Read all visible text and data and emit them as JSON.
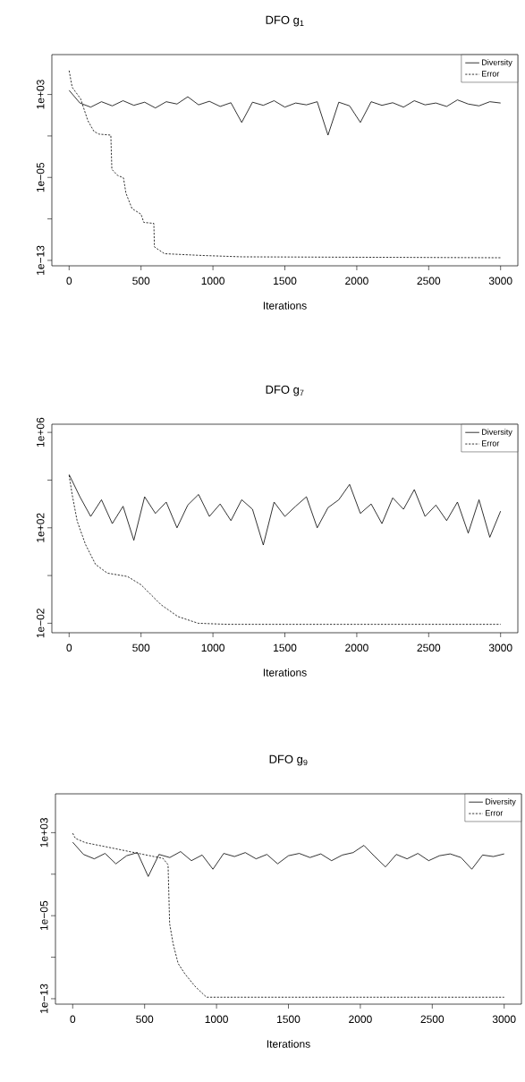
{
  "chart_data": [
    {
      "type": "line",
      "title": "DFO g$_{1}$",
      "xlabel": "Iterations",
      "log": "y",
      "legend": "top right",
      "xlim": [
        -120,
        3120
      ],
      "ylim": [
        3e-14,
        7000000.0
      ],
      "xticks": [
        0,
        500,
        1000,
        1500,
        2000,
        2500,
        3000
      ],
      "yticks": [
        {
          "value": 1000,
          "label": "1e+03"
        },
        {
          "value": 0.1,
          "label": null
        },
        {
          "value": 1e-05,
          "label": "1e−05"
        },
        {
          "value": 1e-09,
          "label": null
        },
        {
          "value": 1e-13,
          "label": "1e−13"
        }
      ],
      "series": [
        {
          "name": "Diversity",
          "color": "#000000",
          "line_style": "solid",
          "x": [
            0,
            75,
            150,
            225,
            300,
            375,
            450,
            525,
            600,
            675,
            750,
            825,
            900,
            975,
            1050,
            1125,
            1200,
            1275,
            1350,
            1425,
            1500,
            1575,
            1650,
            1725,
            1800,
            1875,
            1950,
            2025,
            2100,
            2175,
            2250,
            2325,
            2400,
            2475,
            2550,
            2625,
            2700,
            2775,
            2850,
            2925,
            3000
          ],
          "values": [
            2500,
            150,
            60,
            200,
            80,
            250,
            90,
            180,
            50,
            200,
            120,
            600,
            100,
            220,
            70,
            160,
            2,
            180,
            90,
            250,
            60,
            150,
            100,
            200,
            0.12,
            180,
            80,
            2,
            200,
            90,
            160,
            60,
            250,
            100,
            150,
            70,
            300,
            120,
            80,
            200,
            150
          ]
        },
        {
          "name": "Error",
          "color": "#000000",
          "line_style": "dashed",
          "x": [
            0,
            21,
            80,
            130,
            173,
            208,
            290,
            297,
            336,
            378,
            395,
            437,
            500,
            519,
            589,
            593,
            663,
            920,
            1200,
            3000
          ],
          "values": [
            200000,
            5000,
            380,
            3,
            0.27,
            0.15,
            0.12,
            6e-05,
            1.6e-05,
            9e-06,
            3e-07,
            1e-08,
            2.8e-09,
            4.6e-10,
            3.7e-10,
            2e-12,
            4.4e-13,
            3e-13,
            2.2e-13,
            1.8e-13
          ]
        }
      ]
    },
    {
      "type": "line",
      "title": "DFO g$_{7}$",
      "xlabel": "Iterations",
      "log": "y",
      "legend": "top right",
      "xlim": [
        -120,
        3120
      ],
      "ylim": [
        0.004,
        2200000.0
      ],
      "xticks": [
        0,
        500,
        1000,
        1500,
        2000,
        2500,
        3000
      ],
      "yticks": [
        {
          "value": 1000000,
          "label": "1e+06"
        },
        {
          "value": 10000,
          "label": null
        },
        {
          "value": 100,
          "label": "1e+02"
        },
        {
          "value": 1,
          "label": null
        },
        {
          "value": 0.01,
          "label": "1e−02"
        }
      ],
      "series": [
        {
          "name": "Diversity",
          "color": "#000000",
          "line_style": "solid",
          "x": [
            0,
            75,
            150,
            225,
            300,
            375,
            450,
            525,
            600,
            675,
            750,
            825,
            900,
            975,
            1050,
            1125,
            1200,
            1275,
            1350,
            1425,
            1500,
            1575,
            1650,
            1725,
            1800,
            1875,
            1950,
            2025,
            2100,
            2175,
            2250,
            2325,
            2400,
            2475,
            2550,
            2625,
            2700,
            2775,
            2850,
            2925,
            3000
          ],
          "values": [
            17000,
            2000,
            300,
            1500,
            150,
            800,
            30,
            2000,
            400,
            1200,
            100,
            900,
            2500,
            300,
            1000,
            200,
            1500,
            600,
            19,
            1200,
            300,
            800,
            2000,
            100,
            700,
            1500,
            6600,
            400,
            1000,
            150,
            1800,
            600,
            4000,
            300,
            900,
            200,
            1200,
            60,
            1500,
            40,
            500
          ]
        },
        {
          "name": "Error",
          "color": "#000000",
          "line_style": "dashed",
          "x": [
            0,
            21,
            56,
            114,
            184,
            266,
            406,
            500,
            640,
            757,
            897,
            1100,
            3000
          ],
          "values": [
            16000,
            2500,
            190,
            20,
            2.9,
            1.26,
            0.91,
            0.41,
            0.059,
            0.019,
            0.01,
            0.009,
            0.009
          ]
        }
      ]
    },
    {
      "type": "line",
      "title": "DFO g$_{9}$",
      "xlabel": "Iterations",
      "log": "y",
      "legend": "top right",
      "xlim": [
        -120,
        3120
      ],
      "ylim": [
        3e-14,
        5500000.0
      ],
      "xticks": [
        0,
        500,
        1000,
        1500,
        2000,
        2500,
        3000
      ],
      "yticks": [
        {
          "value": 1000,
          "label": "1e+03"
        },
        {
          "value": 0.1,
          "label": null
        },
        {
          "value": 1e-05,
          "label": "1e−05"
        },
        {
          "value": 1e-09,
          "label": null
        },
        {
          "value": 1e-13,
          "label": "1e−13"
        }
      ],
      "series": [
        {
          "name": "Diversity",
          "color": "#000000",
          "line_style": "solid",
          "x": [
            0,
            75,
            150,
            225,
            300,
            375,
            450,
            525,
            600,
            675,
            750,
            825,
            900,
            975,
            1050,
            1125,
            1200,
            1275,
            1350,
            1425,
            1500,
            1575,
            1650,
            1725,
            1800,
            1875,
            1950,
            2025,
            2100,
            2175,
            2250,
            2325,
            2400,
            2475,
            2550,
            2625,
            2700,
            2775,
            2850,
            2925,
            3000
          ],
          "values": [
            120,
            8,
            3,
            10,
            1,
            6,
            12,
            0.06,
            8,
            4,
            15,
            2,
            7,
            0.3,
            10,
            5,
            12,
            3,
            8,
            1,
            6,
            10,
            4,
            9,
            2,
            7,
            12,
            60,
            5,
            0.5,
            8,
            3,
            10,
            2,
            6,
            9,
            4,
            0.3,
            7,
            5,
            9
          ]
        },
        {
          "name": "Error",
          "color": "#000000",
          "line_style": "dashed",
          "x": [
            0,
            19,
            89,
            230,
            628,
            663,
            674,
            698,
            733,
            780,
            850,
            930,
            3000
          ],
          "values": [
            870,
            280,
            107,
            44,
            3.3,
            0.8,
            1.7e-06,
            2e-08,
            2.5e-10,
            2.5e-11,
            1.6e-12,
            1.4e-13,
            1.4e-13
          ]
        }
      ]
    }
  ]
}
